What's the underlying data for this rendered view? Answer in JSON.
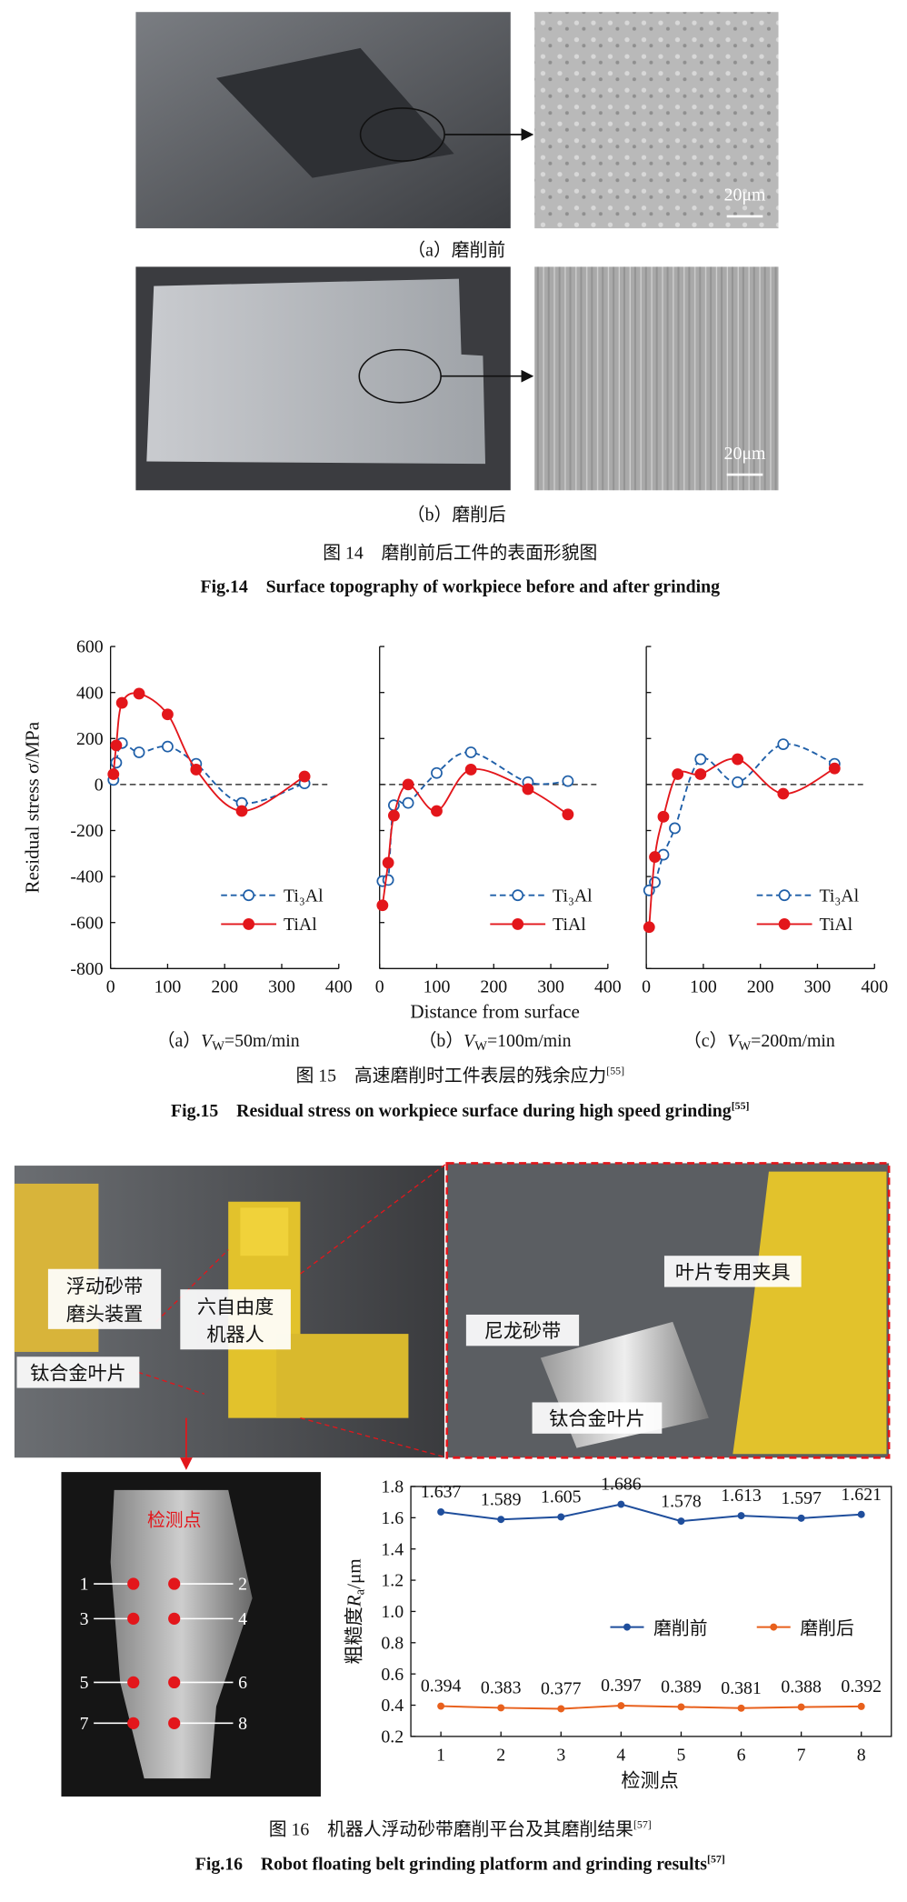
{
  "fig14": {
    "panels": [
      {
        "caption": "（a）磨削前",
        "scale": "20μm"
      },
      {
        "caption": "（b）磨削后",
        "scale": "20μm"
      }
    ],
    "caption_cn": "图 14　磨削前后工件的表面形貌图",
    "caption_en": "Fig.14　Surface topography of workpiece before and after grinding"
  },
  "fig15": {
    "ylabel": "Residual stress σ/MPa",
    "xlabel": "Distance from surface",
    "subcaptions": [
      {
        "label": "（a）",
        "var": "V",
        "sub": "W",
        "rest": "=50m/min"
      },
      {
        "label": "（b）",
        "var": "V",
        "sub": "W",
        "rest": "=100m/min"
      },
      {
        "label": "（c）",
        "var": "V",
        "sub": "W",
        "rest": "=200m/min"
      }
    ],
    "caption_cn": "图 15　高速磨削时工件表层的残余应力",
    "caption_cn_ref": "[55]",
    "caption_en": "Fig.15　Residual stress on workpiece surface during high speed grinding",
    "caption_en_ref": "[55]"
  },
  "fig16": {
    "photo_labels": [
      "浮动砂带",
      "磨头装置",
      "六自由度",
      "机器人",
      "钛合金叶片",
      "叶片专用夹具",
      "尼龙砂带",
      "钛合金叶片"
    ],
    "blade_title": "检测点",
    "points": [
      "1",
      "2",
      "3",
      "4",
      "5",
      "6",
      "7",
      "8"
    ],
    "ylabel": {
      "main": "粗糙度",
      "var": "R",
      "sub": "a",
      "unit": "/μm"
    },
    "xlabel": "检测点",
    "caption_cn": "图 16　机器人浮动砂带磨削平台及其磨削结果",
    "caption_cn_ref": "[57]",
    "caption_en": "Fig.16　Robot floating belt grinding platform and grinding results",
    "caption_en_ref": "[57]"
  },
  "chart_data": [
    {
      "type": "line",
      "xlim": [
        0,
        400
      ],
      "xticks": [
        0,
        100,
        200,
        300,
        400
      ],
      "ylim": [
        -800,
        600
      ],
      "yticks": [
        600,
        400,
        200,
        0,
        -200,
        -400,
        -600,
        -800
      ],
      "series": [
        {
          "name": "Ti₃Al",
          "color": "#1f5fa8",
          "line_style": "dashed",
          "marker": "open",
          "x": [
            5,
            10,
            20,
            50,
            100,
            150,
            230,
            340
          ],
          "values": [
            20,
            95,
            180,
            140,
            165,
            90,
            -80,
            5
          ]
        },
        {
          "name": "TiAl",
          "color": "#e3161b",
          "line_style": "solid",
          "marker": "filled",
          "x": [
            5,
            10,
            20,
            50,
            100,
            150,
            230,
            340
          ],
          "values": [
            45,
            170,
            355,
            395,
            305,
            65,
            -115,
            35
          ]
        }
      ]
    },
    {
      "type": "line",
      "xlim": [
        0,
        400
      ],
      "xticks": [
        0,
        100,
        200,
        300,
        400
      ],
      "ylim": [
        -800,
        600
      ],
      "series": [
        {
          "name": "Ti₃Al",
          "color": "#1f5fa8",
          "line_style": "dashed",
          "marker": "open",
          "x": [
            5,
            15,
            25,
            50,
            100,
            160,
            260,
            330
          ],
          "values": [
            -420,
            -415,
            -90,
            -80,
            50,
            140,
            10,
            15
          ]
        },
        {
          "name": "TiAl",
          "color": "#e3161b",
          "line_style": "solid",
          "marker": "filled",
          "x": [
            5,
            15,
            25,
            50,
            100,
            160,
            260,
            330
          ],
          "values": [
            -525,
            -340,
            -135,
            0,
            -115,
            65,
            -20,
            -130
          ]
        }
      ]
    },
    {
      "type": "line",
      "xlim": [
        0,
        400
      ],
      "xticks": [
        0,
        100,
        200,
        300,
        400
      ],
      "ylim": [
        -800,
        600
      ],
      "series": [
        {
          "name": "Ti₃Al",
          "color": "#1f5fa8",
          "line_style": "dashed",
          "marker": "open",
          "x": [
            5,
            15,
            30,
            50,
            95,
            160,
            240,
            330
          ],
          "values": [
            -460,
            -425,
            -305,
            -190,
            110,
            10,
            175,
            90
          ]
        },
        {
          "name": "TiAl",
          "color": "#e3161b",
          "line_style": "solid",
          "marker": "filled",
          "x": [
            5,
            15,
            30,
            55,
            95,
            160,
            240,
            330
          ],
          "values": [
            -620,
            -315,
            -140,
            45,
            45,
            110,
            -40,
            70
          ]
        }
      ]
    },
    {
      "type": "line",
      "categories": [
        "1",
        "2",
        "3",
        "4",
        "5",
        "6",
        "7",
        "8"
      ],
      "ylim": [
        0.2,
        1.8
      ],
      "yticks": [
        {
          "value": 0.2,
          "label": "0.2"
        },
        {
          "value": 0.4,
          "label": "0.4"
        },
        {
          "value": 0.6,
          "label": "0.6"
        },
        {
          "value": 0.8,
          "label": "0.8"
        },
        {
          "value": 1,
          "label": "1.0"
        },
        {
          "value": 1.2,
          "label": "1.2"
        },
        {
          "value": 1.4,
          "label": "1.4"
        },
        {
          "value": 1.6,
          "label": "1.6"
        },
        {
          "value": 1.8,
          "label": "1.8"
        }
      ],
      "series": [
        {
          "name": "磨削前",
          "color": "#1f4e9c",
          "values": [
            1.637,
            1.589,
            1.605,
            1.686,
            1.578,
            1.613,
            1.597,
            1.621
          ]
        },
        {
          "name": "磨削后",
          "color": "#e8601c",
          "values": [
            0.394,
            0.383,
            0.377,
            0.397,
            0.389,
            0.381,
            0.388,
            0.392
          ]
        }
      ]
    }
  ]
}
